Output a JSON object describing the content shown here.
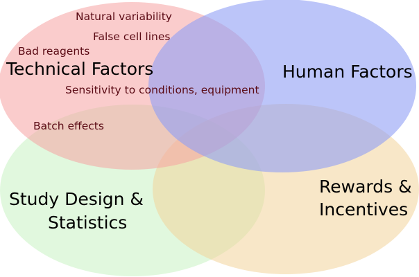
{
  "diagram": {
    "sets": [
      {
        "id": "technical",
        "label": "Technical Factors",
        "color": "#f5a3a3"
      },
      {
        "id": "human",
        "label": "Human Factors",
        "color": "#8f9ff5"
      },
      {
        "id": "study",
        "label_lines": [
          "Study Design &",
          "Statistics"
        ],
        "color": "#c9f2c2"
      },
      {
        "id": "rewards",
        "label_lines": [
          "Rewards &",
          "Incentives"
        ],
        "color": "#f3d39a"
      }
    ],
    "technical_items": [
      "Natural variability",
      "False cell lines",
      "Bad reagents",
      "Sensitivity to conditions, equipment",
      "Batch effects"
    ]
  }
}
